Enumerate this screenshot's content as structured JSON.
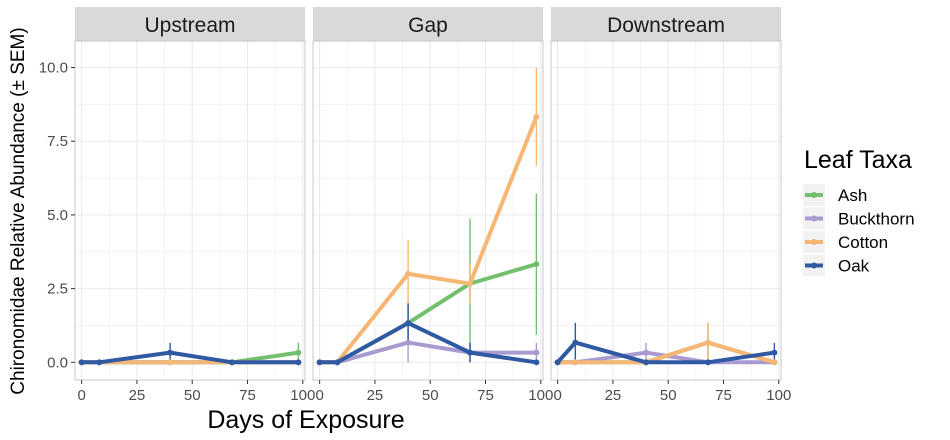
{
  "chart_data": {
    "type": "line",
    "ylabel": "Chironomidae Relative Abundance (± SEM)",
    "xlabel": "Days of Exposure",
    "xlim": [
      -3,
      101
    ],
    "ylim": [
      -0.6,
      10.9
    ],
    "x_ticks": [
      0,
      25,
      50,
      75,
      100
    ],
    "x_tick_labels": [
      "0",
      "25",
      "50",
      "75",
      "100"
    ],
    "y_ticks": [
      0,
      2.5,
      5,
      7.5,
      10
    ],
    "y_tick_labels": [
      "0.0",
      "2.5",
      "5.0",
      "7.5",
      "10.0"
    ],
    "grid": true,
    "legend": {
      "title": "Leaf Taxa",
      "position": "right",
      "entries": [
        "Ash",
        "Buckthorn",
        "Cotton",
        "Oak"
      ]
    },
    "colors": {
      "Ash": "#72bf6e",
      "Buckthorn": "#a99bd0",
      "Cotton": "#f6b775",
      "Oak": "#2f59a3",
      "panel_background": "#ffffff",
      "grid": "#ebebeb",
      "strip": "#d9d9d9"
    },
    "panels": [
      {
        "name": "Upstream",
        "series": [
          {
            "name": "Ash",
            "x": [
              0,
              8,
              40,
              68,
              98
            ],
            "y": [
              0,
              0,
              0,
              0,
              0.33
            ],
            "err": [
              0,
              0,
              0,
              0,
              0.33
            ]
          },
          {
            "name": "Buckthorn",
            "x": [
              0,
              8,
              40,
              68,
              98
            ],
            "y": [
              0,
              0,
              0,
              0,
              0
            ],
            "err": [
              0,
              0,
              0,
              0,
              0
            ]
          },
          {
            "name": "Cotton",
            "x": [
              0,
              8,
              40,
              68,
              98
            ],
            "y": [
              0,
              0,
              0,
              0,
              0
            ],
            "err": [
              0,
              0,
              0,
              0,
              0
            ]
          },
          {
            "name": "Oak",
            "x": [
              0,
              8,
              40,
              68,
              98
            ],
            "y": [
              0,
              0,
              0.33,
              0,
              0
            ],
            "err": [
              0,
              0,
              0.33,
              0,
              0
            ]
          }
        ]
      },
      {
        "name": "Gap",
        "series": [
          {
            "name": "Ash",
            "x": [
              0,
              8,
              40,
              68,
              98
            ],
            "y": [
              0,
              0,
              1.33,
              2.67,
              3.33
            ],
            "err": [
              0,
              0,
              0.67,
              2.2,
              2.4
            ]
          },
          {
            "name": "Buckthorn",
            "x": [
              0,
              8,
              40,
              68,
              98
            ],
            "y": [
              0,
              0,
              0.67,
              0.33,
              0.33
            ],
            "err": [
              0,
              0,
              0.67,
              0.33,
              0.33
            ]
          },
          {
            "name": "Cotton",
            "x": [
              0,
              8,
              40,
              68,
              98
            ],
            "y": [
              0,
              0,
              3.0,
              2.67,
              8.33
            ],
            "err": [
              0,
              0,
              1.15,
              0.67,
              1.67
            ]
          },
          {
            "name": "Oak",
            "x": [
              0,
              8,
              40,
              68,
              98
            ],
            "y": [
              0,
              0,
              1.33,
              0.33,
              0
            ],
            "err": [
              0,
              0,
              0.67,
              0.33,
              0
            ]
          }
        ]
      },
      {
        "name": "Downstream",
        "series": [
          {
            "name": "Ash",
            "x": [
              0,
              8,
              40,
              68,
              98
            ],
            "y": [
              0,
              0,
              0,
              0.67,
              0
            ],
            "err": [
              0,
              0,
              0,
              0.67,
              0
            ]
          },
          {
            "name": "Buckthorn",
            "x": [
              0,
              8,
              40,
              68,
              98
            ],
            "y": [
              0,
              0,
              0.33,
              0,
              0
            ],
            "err": [
              0,
              0,
              0.33,
              0,
              0
            ]
          },
          {
            "name": "Cotton",
            "x": [
              0,
              8,
              40,
              68,
              98
            ],
            "y": [
              0,
              0,
              0,
              0.67,
              0
            ],
            "err": [
              0,
              0,
              0,
              0.67,
              0
            ]
          },
          {
            "name": "Oak",
            "x": [
              0,
              8,
              40,
              68,
              98
            ],
            "y": [
              0,
              0.67,
              0,
              0,
              0.33
            ],
            "err": [
              0,
              0.67,
              0,
              0,
              0.33
            ]
          }
        ]
      }
    ]
  }
}
